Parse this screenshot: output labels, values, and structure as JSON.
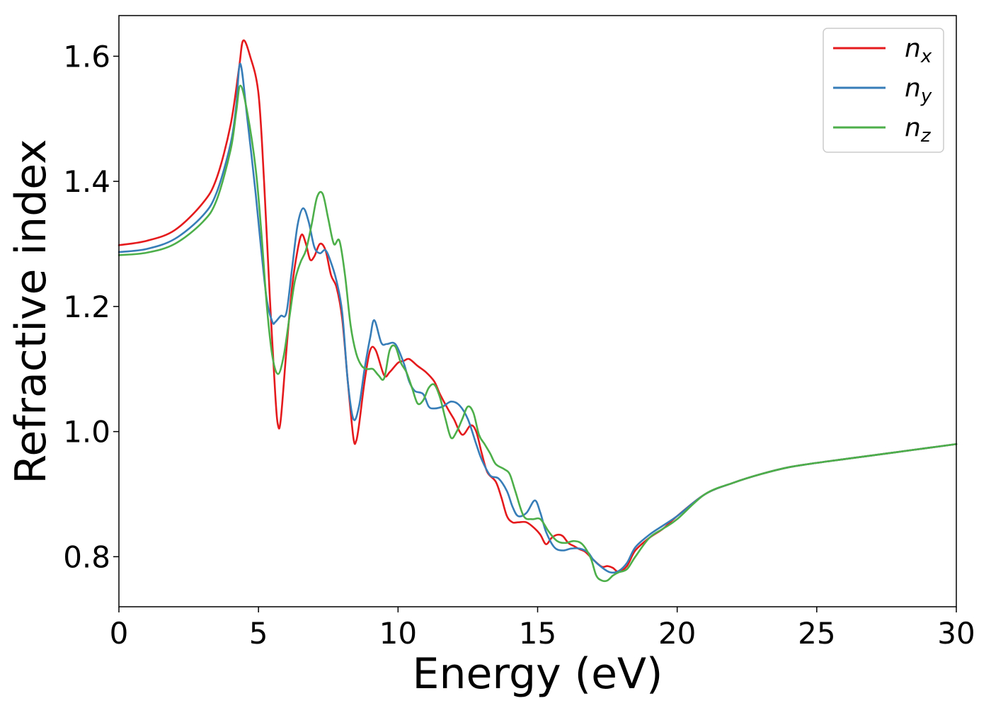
{
  "chart_data": {
    "type": "line",
    "title": "",
    "xlabel": "Energy (eV)",
    "ylabel": "Refractive index",
    "xlim": [
      0,
      30
    ],
    "ylim": [
      0.72,
      1.665
    ],
    "xticks": [
      0,
      5,
      10,
      15,
      20,
      25,
      30
    ],
    "yticks": [
      0.8,
      1.0,
      1.2,
      1.4,
      1.6
    ],
    "xtick_labels": [
      "0",
      "5",
      "10",
      "15",
      "20",
      "25",
      "30"
    ],
    "ytick_labels": [
      "0.8",
      "1.0",
      "1.2",
      "1.4",
      "1.6"
    ],
    "grid": false,
    "legend": {
      "placement": "top-right",
      "entries": [
        {
          "base": "n",
          "sub": "x"
        },
        {
          "base": "n",
          "sub": "y"
        },
        {
          "base": "n",
          "sub": "z"
        }
      ]
    },
    "series": [
      {
        "name": "n_x",
        "color": "#e41a1c",
        "x": [
          0,
          1,
          2,
          3,
          3.5,
          4,
          4.3,
          4.45,
          4.7,
          5.0,
          5.2,
          5.4,
          5.6,
          5.7,
          5.8,
          6.0,
          6.2,
          6.4,
          6.55,
          6.7,
          6.85,
          7.0,
          7.2,
          7.4,
          7.6,
          7.8,
          8.0,
          8.2,
          8.4,
          8.5,
          8.6,
          8.8,
          9.0,
          9.2,
          9.5,
          9.7,
          10.0,
          10.2,
          10.4,
          10.7,
          11.0,
          11.3,
          11.5,
          11.8,
          12.0,
          12.3,
          12.6,
          12.8,
          13.0,
          13.2,
          13.5,
          13.7,
          13.9,
          14.1,
          14.3,
          14.6,
          14.9,
          15.1,
          15.3,
          15.5,
          15.7,
          15.9,
          16.1,
          16.3,
          16.5,
          16.7,
          17.0,
          17.3,
          17.5,
          17.7,
          17.9,
          18.2,
          18.5,
          19.0,
          19.5,
          20.0,
          21.0,
          22.0,
          23.0,
          24.0,
          25.0,
          26.0,
          27.0,
          28.0,
          29.0,
          30.0
        ],
        "y": [
          1.298,
          1.305,
          1.322,
          1.365,
          1.405,
          1.49,
          1.58,
          1.625,
          1.6,
          1.54,
          1.4,
          1.22,
          1.06,
          1.01,
          1.02,
          1.13,
          1.23,
          1.29,
          1.315,
          1.3,
          1.275,
          1.28,
          1.3,
          1.29,
          1.25,
          1.23,
          1.18,
          1.08,
          0.99,
          0.985,
          1.01,
          1.08,
          1.13,
          1.13,
          1.09,
          1.095,
          1.11,
          1.113,
          1.116,
          1.105,
          1.095,
          1.08,
          1.06,
          1.035,
          1.02,
          0.995,
          1.01,
          1.0,
          0.965,
          0.935,
          0.92,
          0.895,
          0.865,
          0.855,
          0.855,
          0.855,
          0.845,
          0.835,
          0.82,
          0.83,
          0.835,
          0.833,
          0.822,
          0.817,
          0.812,
          0.808,
          0.795,
          0.784,
          0.785,
          0.782,
          0.776,
          0.785,
          0.81,
          0.83,
          0.845,
          0.865,
          0.9,
          0.918,
          0.932,
          0.943,
          0.95,
          0.956,
          0.962,
          0.968,
          0.974,
          0.98
        ]
      },
      {
        "name": "n_y",
        "color": "#377eb8",
        "x": [
          0,
          1,
          2,
          3,
          3.5,
          4,
          4.2,
          4.35,
          4.6,
          4.9,
          5.1,
          5.3,
          5.5,
          5.6,
          5.8,
          6.0,
          6.2,
          6.4,
          6.6,
          6.8,
          7.0,
          7.2,
          7.4,
          7.6,
          7.8,
          8.0,
          8.2,
          8.4,
          8.6,
          8.8,
          9.0,
          9.15,
          9.4,
          9.6,
          9.9,
          10.2,
          10.4,
          10.6,
          10.9,
          11.1,
          11.3,
          11.6,
          11.9,
          12.2,
          12.5,
          12.8,
          13.0,
          13.3,
          13.6,
          13.9,
          14.1,
          14.3,
          14.6,
          14.9,
          15.1,
          15.3,
          15.6,
          15.9,
          16.2,
          16.5,
          16.8,
          17.0,
          17.3,
          17.6,
          17.9,
          18.2,
          18.5,
          19.0,
          19.5,
          20.0,
          21.0,
          22.0,
          23.0,
          24.0,
          25.0,
          26.0,
          27.0,
          28.0,
          29.0,
          30.0
        ],
        "y": [
          1.287,
          1.292,
          1.308,
          1.345,
          1.382,
          1.46,
          1.52,
          1.588,
          1.5,
          1.38,
          1.29,
          1.21,
          1.175,
          1.175,
          1.185,
          1.19,
          1.26,
          1.33,
          1.357,
          1.335,
          1.295,
          1.285,
          1.29,
          1.27,
          1.24,
          1.19,
          1.08,
          1.02,
          1.04,
          1.1,
          1.15,
          1.178,
          1.142,
          1.14,
          1.14,
          1.11,
          1.08,
          1.065,
          1.06,
          1.04,
          1.037,
          1.04,
          1.048,
          1.042,
          1.02,
          0.98,
          0.955,
          0.93,
          0.925,
          0.905,
          0.88,
          0.865,
          0.87,
          0.89,
          0.87,
          0.84,
          0.815,
          0.81,
          0.813,
          0.813,
          0.807,
          0.795,
          0.783,
          0.775,
          0.777,
          0.79,
          0.815,
          0.835,
          0.85,
          0.865,
          0.9,
          0.918,
          0.932,
          0.943,
          0.95,
          0.956,
          0.962,
          0.968,
          0.974,
          0.98
        ]
      },
      {
        "name": "n_z",
        "color": "#4daf4a",
        "x": [
          0,
          1,
          2,
          3,
          3.5,
          4,
          4.2,
          4.35,
          4.6,
          4.9,
          5.1,
          5.3,
          5.5,
          5.7,
          5.9,
          6.1,
          6.3,
          6.5,
          6.7,
          6.9,
          7.1,
          7.3,
          7.5,
          7.7,
          7.9,
          8.1,
          8.3,
          8.5,
          8.7,
          8.9,
          9.1,
          9.3,
          9.5,
          9.7,
          9.9,
          10.1,
          10.3,
          10.5,
          10.7,
          10.9,
          11.1,
          11.3,
          11.5,
          11.7,
          11.9,
          12.1,
          12.3,
          12.5,
          12.7,
          12.9,
          13.1,
          13.3,
          13.5,
          13.8,
          14.0,
          14.2,
          14.5,
          14.8,
          15.1,
          15.4,
          15.7,
          16.0,
          16.3,
          16.6,
          16.9,
          17.1,
          17.3,
          17.5,
          17.7,
          17.9,
          18.2,
          18.5,
          19.0,
          19.5,
          20.0,
          21.0,
          22.0,
          23.0,
          24.0,
          25.0,
          26.0,
          27.0,
          28.0,
          29.0,
          30.0
        ],
        "y": [
          1.282,
          1.286,
          1.3,
          1.335,
          1.37,
          1.45,
          1.51,
          1.553,
          1.51,
          1.42,
          1.32,
          1.2,
          1.12,
          1.092,
          1.12,
          1.18,
          1.24,
          1.27,
          1.29,
          1.33,
          1.375,
          1.38,
          1.34,
          1.3,
          1.305,
          1.25,
          1.17,
          1.125,
          1.105,
          1.1,
          1.1,
          1.09,
          1.085,
          1.13,
          1.136,
          1.11,
          1.095,
          1.07,
          1.045,
          1.05,
          1.07,
          1.075,
          1.055,
          1.02,
          0.99,
          1.0,
          1.02,
          1.04,
          1.03,
          0.995,
          0.98,
          0.965,
          0.948,
          0.94,
          0.932,
          0.905,
          0.865,
          0.86,
          0.86,
          0.84,
          0.825,
          0.822,
          0.825,
          0.82,
          0.798,
          0.77,
          0.762,
          0.762,
          0.77,
          0.775,
          0.78,
          0.8,
          0.83,
          0.845,
          0.86,
          0.9,
          0.918,
          0.932,
          0.943,
          0.95,
          0.956,
          0.962,
          0.968,
          0.974,
          0.98
        ]
      }
    ]
  }
}
